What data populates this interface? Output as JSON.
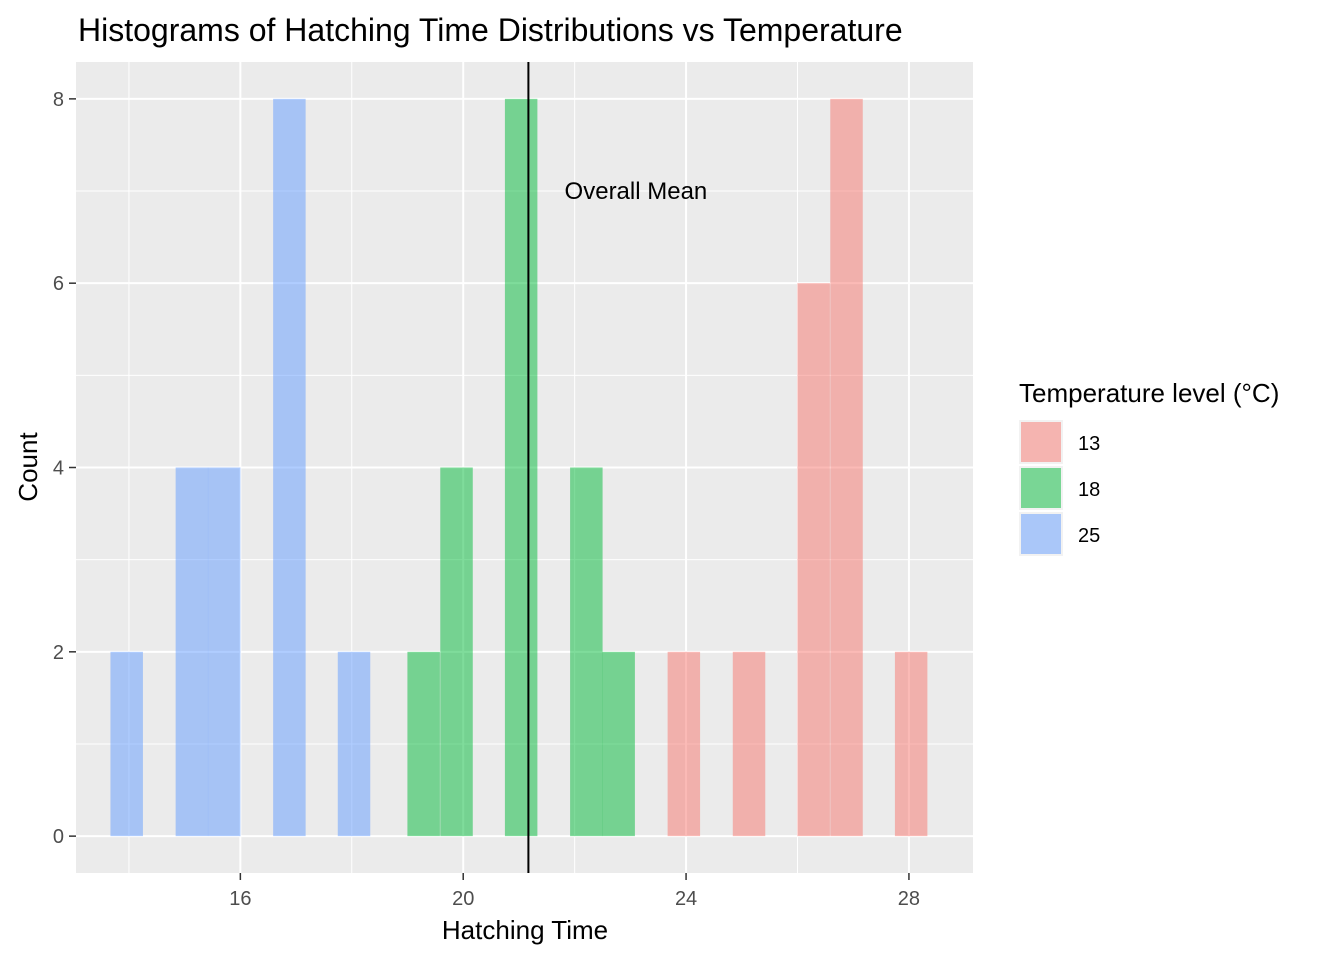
{
  "chart_data": {
    "type": "histogram",
    "title": "Histograms of Hatching Time Distributions vs Temperature",
    "xlabel": "Hatching Time",
    "ylabel": "Count",
    "xlim": [
      13.05,
      29.15
    ],
    "ylim": [
      -0.4,
      8.4
    ],
    "xticks": [
      16,
      20,
      24,
      28
    ],
    "yticks": [
      0,
      2,
      4,
      6,
      8
    ],
    "xgrid_minor": [
      14,
      18,
      22,
      26
    ],
    "ygrid_minor": [
      1,
      3,
      5,
      7
    ],
    "bin_width": 0.583,
    "legend": {
      "title": "Temperature level (°C)",
      "position": "right"
    },
    "series": [
      {
        "name": "13",
        "color": "#F8766D",
        "bins": [
          {
            "x": 23.96,
            "count": 2
          },
          {
            "x": 25.13,
            "count": 2
          },
          {
            "x": 26.29,
            "count": 6
          },
          {
            "x": 26.88,
            "count": 8
          },
          {
            "x": 28.04,
            "count": 2
          }
        ]
      },
      {
        "name": "18",
        "color": "#00BA38",
        "bins": [
          {
            "x": 19.29,
            "count": 2
          },
          {
            "x": 19.88,
            "count": 4
          },
          {
            "x": 21.04,
            "count": 8
          },
          {
            "x": 22.21,
            "count": 4
          },
          {
            "x": 22.79,
            "count": 2
          }
        ]
      },
      {
        "name": "25",
        "color": "#619CFF",
        "bins": [
          {
            "x": 13.96,
            "count": 2
          },
          {
            "x": 15.13,
            "count": 4
          },
          {
            "x": 15.71,
            "count": 4
          },
          {
            "x": 16.88,
            "count": 8
          },
          {
            "x": 18.04,
            "count": 2
          }
        ]
      }
    ],
    "fill_alpha": 0.5,
    "mean_line": {
      "x": 21.17,
      "color": "#000000"
    },
    "annotation": {
      "text": "Overall Mean",
      "x": 23.1,
      "y": 7.0
    }
  }
}
